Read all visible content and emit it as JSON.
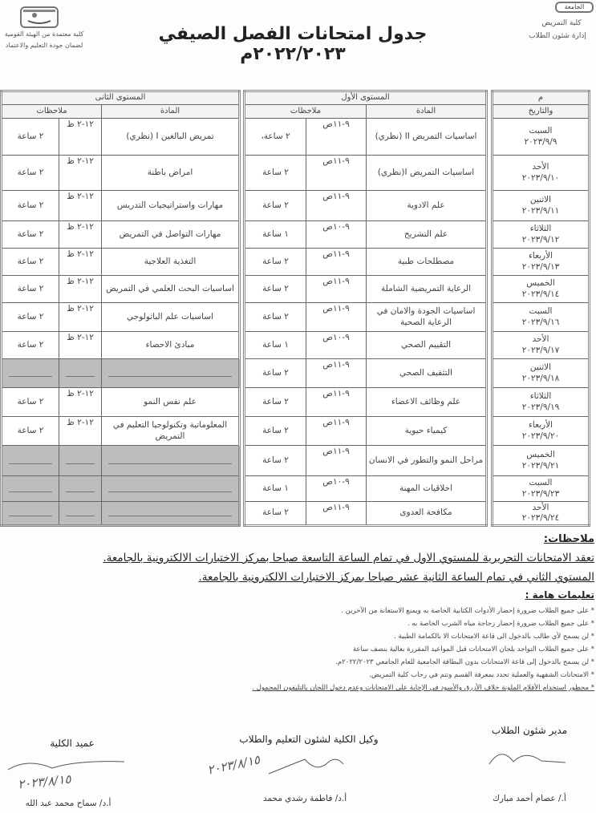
{
  "header": {
    "right_logo_text": "الجامعة",
    "faculty": "كلية التمريض",
    "department": "إدارة شئون الطلاب",
    "title": "جدول امتحانات الفصل الصيفي ٢٠٢٢/٢٠٢٣م",
    "accreditation_line1": "كلية معتمدة من الهيئة القومية",
    "accreditation_line2": "لضمان جودة التعليم والاعتماد"
  },
  "table": {
    "date_header_1": "م",
    "date_header_2": "والتاريخ",
    "level1_header": "المستوى الأول",
    "level2_header": "المستوى الثانى",
    "subject_header": "المادة",
    "notes_header": "ملاحظات",
    "dates": [
      {
        "day": "السبت",
        "date": "٢٠٢٣/٩/٩"
      },
      {
        "day": "الأحد",
        "date": "٢٠٢٣/٩/١٠"
      },
      {
        "day": "الاثنين",
        "date": "٢٠٢٣/٩/١١"
      },
      {
        "day": "الثلاثاء",
        "date": "٢٠٢٣/٩/١٢"
      },
      {
        "day": "الأربعاء",
        "date": "٢٠٢٣/٩/١٣"
      },
      {
        "day": "الخميس",
        "date": "٢٠٢٣/٩/١٤"
      },
      {
        "day": "السبت",
        "date": "٢٠٢٣/٩/١٦"
      },
      {
        "day": "الأحد",
        "date": "٢٠٢٣/٩/١٧"
      },
      {
        "day": "الاثنين",
        "date": "٢٠٢٣/٩/١٨"
      },
      {
        "day": "الثلاثاء",
        "date": "٢٠٢٣/٩/١٩"
      },
      {
        "day": "الأربعاء",
        "date": "٢٠٢٣/٩/٢٠"
      },
      {
        "day": "الخميس",
        "date": "٢٠٢٣/٩/٢١"
      },
      {
        "day": "السبت",
        "date": "٢٠٢٣/٩/٢٣"
      },
      {
        "day": "الأحد",
        "date": "٢٠٢٣/٩/٢٤"
      }
    ],
    "level1": [
      {
        "subject": "اساسيات التمريض II (نظري)",
        "time": "٩-١١ص",
        "duration": "٢ ساعة،"
      },
      {
        "subject": "اساسيات التمريض I(نظري)",
        "time": "٩-١١ص",
        "duration": "٢ ساعة"
      },
      {
        "subject": "علم الادوية",
        "time": "٩-١١ص",
        "duration": "٢ ساعة"
      },
      {
        "subject": "علم التشريح",
        "time": "٩-١٠ص",
        "duration": "١ ساعة"
      },
      {
        "subject": "مصطلحات طبية",
        "time": "٩-١١ص",
        "duration": "٢ ساعة"
      },
      {
        "subject": "الرعاية التمريضية الشاملة",
        "time": "٩-١١ص",
        "duration": "٢ ساعة"
      },
      {
        "subject": "اساسيات الجودة والامان في الرعاية الصحية",
        "time": "٩-١١ص",
        "duration": "٢ ساعة"
      },
      {
        "subject": "التقييم الصحي",
        "time": "٩-١٠ص",
        "duration": "١ ساعة"
      },
      {
        "subject": "التثقيف الصحي",
        "time": "٩-١١ص",
        "duration": "٢ ساعة"
      },
      {
        "subject": "علم وظائف الاعضاء",
        "time": "٩-١١ص",
        "duration": "٢ ساعة"
      },
      {
        "subject": "كيمياء حيوية",
        "time": "٩-١١ص",
        "duration": "٢ ساعة"
      },
      {
        "subject": "مراحل النمو والتطور في الانسان",
        "time": "٩-١١ص",
        "duration": "٢ ساعة"
      },
      {
        "subject": "اخلاقيات المهنة",
        "time": "٩-١٠ص",
        "duration": "١ ساعة"
      },
      {
        "subject": "مكافحة العدوى",
        "time": "٩-١١ص",
        "duration": "٢ ساعة"
      }
    ],
    "level2": [
      {
        "subject": "تمريض البالغين I (نظري)",
        "time": "١٢-٢ ظ",
        "duration": "٢ ساعة"
      },
      {
        "subject": "امراض باطنة",
        "time": "١٢-٢ ظ",
        "duration": "٢ ساعة"
      },
      {
        "subject": "مهارات واستراتيجيات التدريس",
        "time": "١٢-٢ ظ",
        "duration": "٢ ساعة"
      },
      {
        "subject": "مهارات التواصل في التمريض",
        "time": "١٢-٢ ظ",
        "duration": "٢ ساعة"
      },
      {
        "subject": "التغذية العلاجية",
        "time": "١٢-٢ ظ",
        "duration": "٢ ساعة"
      },
      {
        "subject": "اساسيات البحث العلمي في التمريض",
        "time": "١٢-٢ ظ",
        "duration": "٢ ساعة"
      },
      {
        "subject": "اساسيات علم الباثولوجي",
        "time": "١٢-٢ ظ",
        "duration": "٢ ساعة"
      },
      {
        "subject": "مبادئ الاحصاء",
        "time": "١٢-٢ ظ",
        "duration": "٢ ساعة"
      },
      {
        "subject": "",
        "time": "",
        "duration": "",
        "shaded": true
      },
      {
        "subject": "علم نفس النمو",
        "time": "١٢-٢ ظ",
        "duration": "٢ ساعة"
      },
      {
        "subject": "المعلوماتية وتكنولوجيا التعليم في التمريض",
        "time": "١٢-٢ ظ",
        "duration": "٢ ساعة"
      },
      {
        "subject": "",
        "time": "",
        "duration": "",
        "shaded": true
      },
      {
        "subject": "",
        "time": "",
        "duration": "",
        "shaded": true
      },
      {
        "subject": "",
        "time": "",
        "duration": "",
        "shaded": true
      }
    ]
  },
  "notes": {
    "heading": "ملاحظات:",
    "line1": "تعقد الامتحانات التحريرية للمستوي الاول  في تمام الساعة التاسعة صباحا بمركز الاختبارات الالكترونية بالجامعة.",
    "line2": "المستوي الثاني في تمام الساعة الثانية عشر صباحا بمركز الاختبارات الالكترونية بالجامعة.",
    "instructions_heading": "تعليمات هامة :",
    "instructions": [
      "* على جميع الطلاب ضرورة إحضار الأدوات الكتابية الخاصة به ويمنع الاستعانة من الآخرين .",
      "* على  جميع الطلاب ضرورة إحضار زجاجة مياه الشرب الخاصة به .",
      "* لن يسمح لأي طالب بالدخول الى قاعة الامتحانات الا بالكمامة الطبية .",
      "* على جميع الطلاب التواجد بلجان الامتحانات قبل المواعيد المقررة بعالية بنصف ساعة",
      "* لن يسمح بالدخول إلى قاعة الامتحانات بدون البطاقة الجامعية للعام الجامعي ٢٠٢٢/٢٠٢٣م.",
      "* الامتحانات الشفهية والعملية تحدد بمعرفة القسم وتتم في رحاب كلية التمريض.",
      "* محظور استخدام الأقلام الملونة خلاف الأزرق والأسود في الإجابة على الامتحانات وعدم دخول اللجان بالتليفون المحمول ."
    ]
  },
  "signatures": [
    {
      "title": "مدير شئون الطلاب",
      "name": "أ./ عصام أحمد مبارك"
    },
    {
      "title": "وكيل الكلية لشئون التعليم والطلاب",
      "name": "أ.د/ فاطمة رشدي محمد",
      "handwritten_date": "٢٠٢٣/٨/١٥"
    },
    {
      "title": "عميد الكلية",
      "name": "أ.د/ سماح محمد عبد الله",
      "handwritten_date": "٢٠٢٣/٨/١٥"
    }
  ]
}
